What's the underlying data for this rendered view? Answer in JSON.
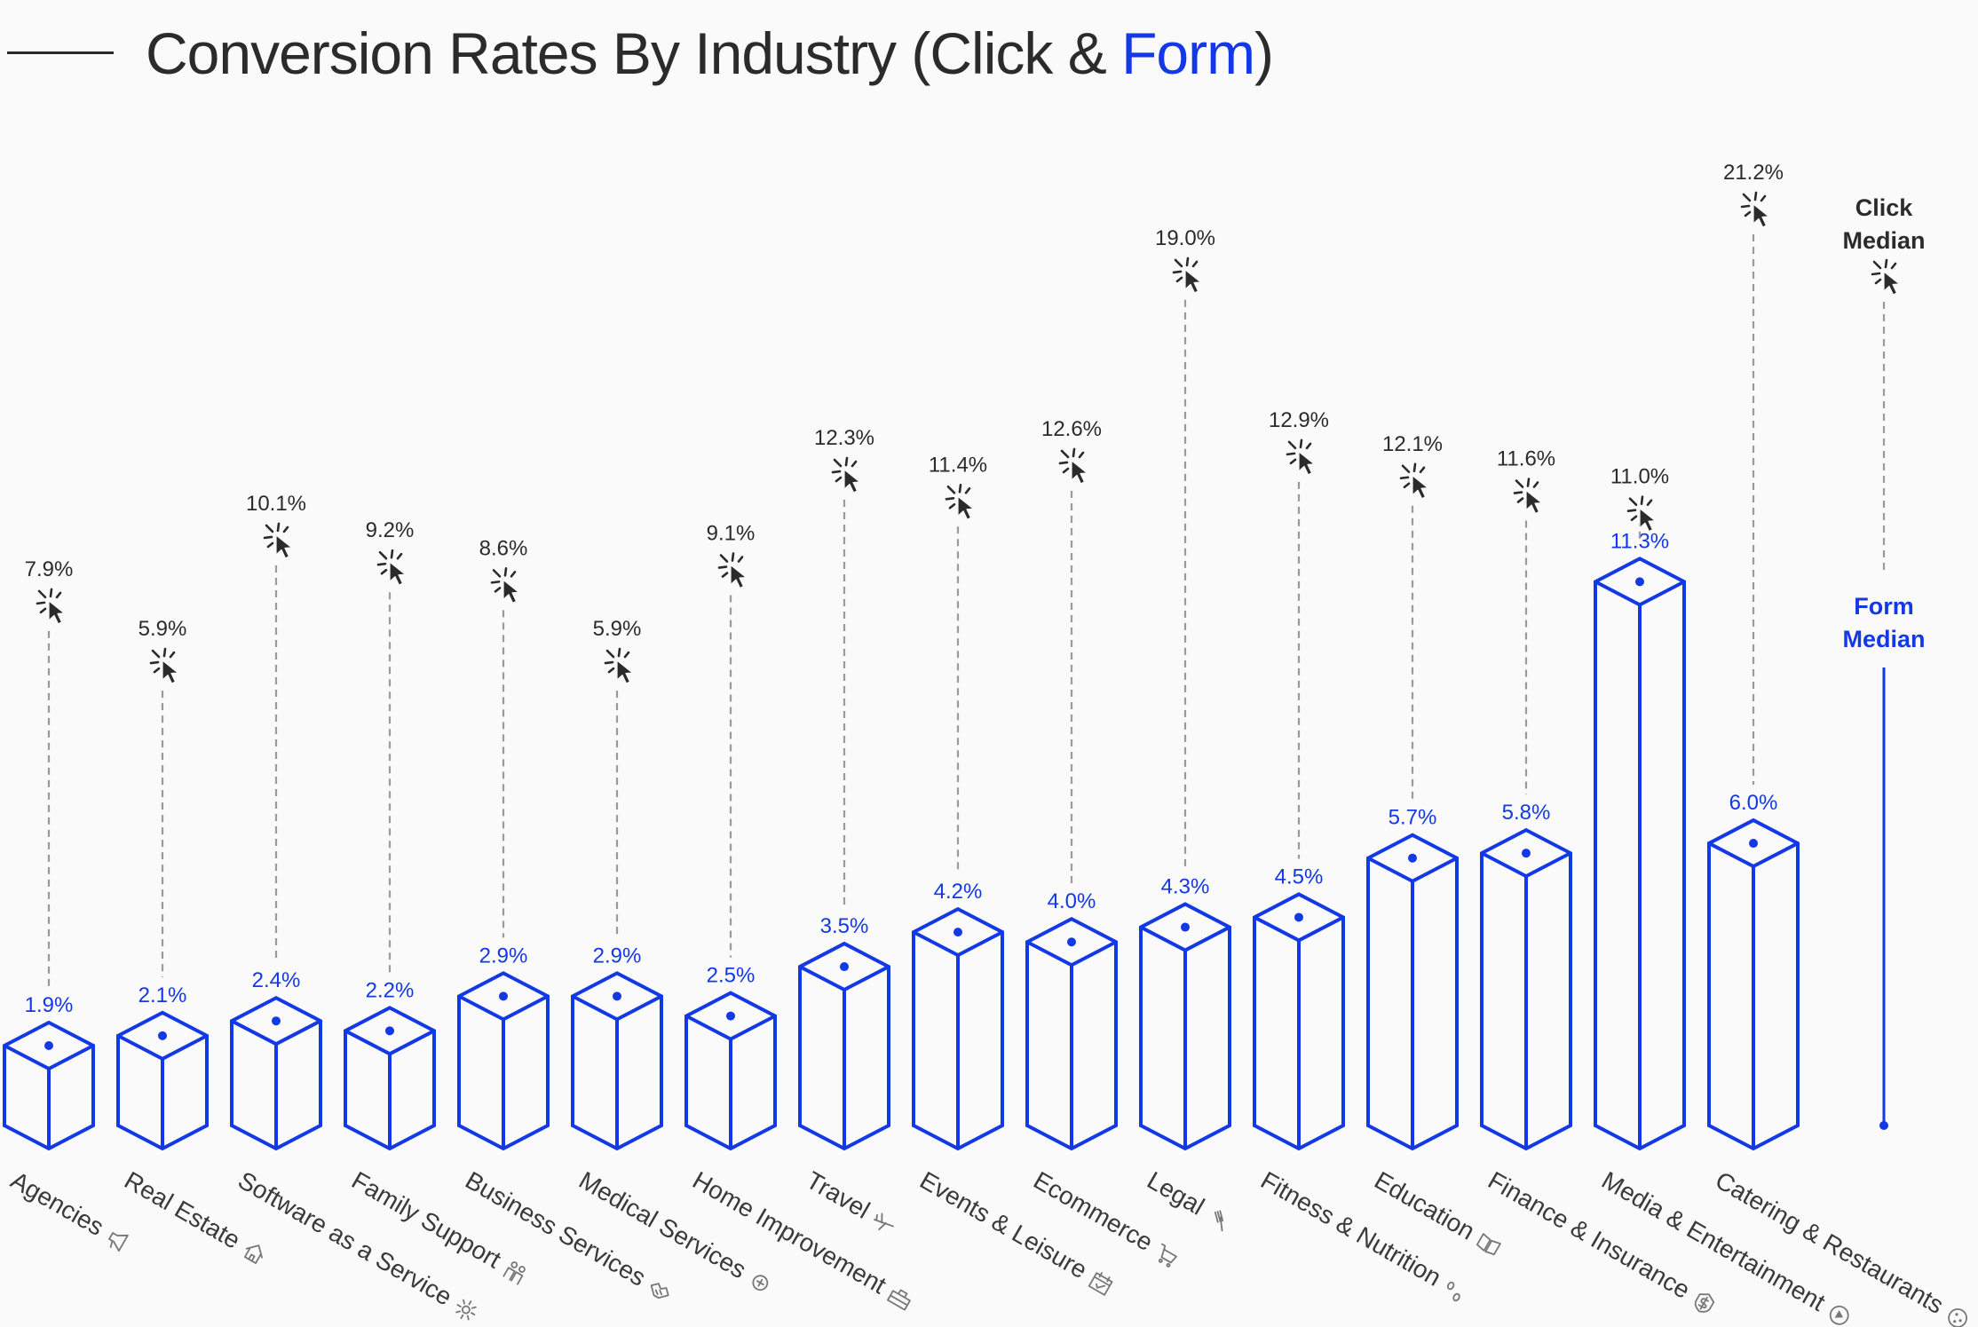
{
  "title": {
    "prefix": "Conversion Rates By Industry (Click & ",
    "accent": "Form",
    "suffix": ")"
  },
  "colors": {
    "form": "#1338e6",
    "click": "#2b2b2b",
    "guide": "#9a9a9a"
  },
  "legend": {
    "click_line1": "Click",
    "click_line2": "Median",
    "form_line1": "Form",
    "form_line2": "Median"
  },
  "chart_data": {
    "type": "bar",
    "categories": [
      "Agencies",
      "Real Estate",
      "Software as a Service",
      "Family Support",
      "Business Services",
      "Medical Services",
      "Home Improvement",
      "Travel",
      "Events & Leisure",
      "Ecommerce",
      "Legal",
      "Fitness & Nutrition",
      "Education",
      "Finance & Insurance",
      "Media & Entertainment",
      "Catering & Restaurants"
    ],
    "icons": [
      "megaphone-icon",
      "house-icon",
      "gear-icon",
      "family-icon",
      "handshake-icon",
      "medical-icon",
      "toolbox-icon",
      "airplane-icon",
      "calendar-icon",
      "cart-icon",
      "gavel-icon",
      "footprints-icon",
      "book-icon",
      "money-shield-icon",
      "play-icon",
      "cookie-icon"
    ],
    "series": [
      {
        "name": "Form Median",
        "values": [
          1.9,
          2.1,
          2.4,
          2.2,
          2.9,
          2.9,
          2.5,
          3.5,
          4.2,
          4.0,
          4.3,
          4.5,
          5.7,
          5.8,
          11.3,
          6.0
        ],
        "labels": [
          "1.9%",
          "2.1%",
          "2.4%",
          "2.2%",
          "2.9%",
          "2.9%",
          "2.5%",
          "3.5%",
          "4.2%",
          "4.0%",
          "4.3%",
          "4.5%",
          "5.7%",
          "5.8%",
          "11.3%",
          "6.0%"
        ]
      },
      {
        "name": "Click Median",
        "values": [
          7.9,
          5.9,
          10.1,
          9.2,
          8.6,
          5.9,
          9.1,
          12.3,
          11.4,
          12.6,
          19.0,
          12.9,
          12.1,
          11.6,
          11.0,
          21.2
        ],
        "labels": [
          "7.9%",
          "5.9%",
          "10.1%",
          "9.2%",
          "8.6%",
          "5.9%",
          "9.1%",
          "12.3%",
          "11.4%",
          "12.6%",
          "19.0%",
          "12.9%",
          "12.1%",
          "11.6%",
          "11.0%",
          "21.2%"
        ]
      }
    ],
    "xlabel": "",
    "ylabel": "",
    "grid": false,
    "legend_position": "right"
  }
}
